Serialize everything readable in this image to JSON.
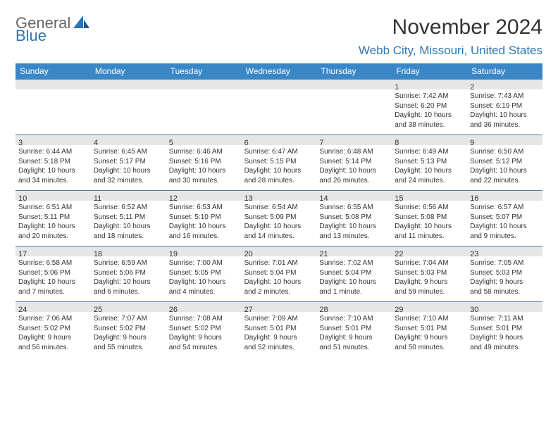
{
  "logo": {
    "general": "General",
    "blue": "Blue"
  },
  "title": "November 2024",
  "location": "Webb City, Missouri, United States",
  "colors": {
    "header_bg": "#3a87c8",
    "shade_bg": "#e6e6e6",
    "accent": "#2f74b5",
    "text": "#333333",
    "logo_gray": "#656565"
  },
  "layout": {
    "cols": 7,
    "rows": 5,
    "cell_min_h": 78
  },
  "day_headers": [
    "Sunday",
    "Monday",
    "Tuesday",
    "Wednesday",
    "Thursday",
    "Friday",
    "Saturday"
  ],
  "weeks": [
    [
      {
        "date": "",
        "lines": []
      },
      {
        "date": "",
        "lines": []
      },
      {
        "date": "",
        "lines": []
      },
      {
        "date": "",
        "lines": []
      },
      {
        "date": "",
        "lines": []
      },
      {
        "date": "1",
        "lines": [
          "Sunrise: 7:42 AM",
          "Sunset: 6:20 PM",
          "Daylight: 10 hours",
          "and 38 minutes."
        ]
      },
      {
        "date": "2",
        "lines": [
          "Sunrise: 7:43 AM",
          "Sunset: 6:19 PM",
          "Daylight: 10 hours",
          "and 36 minutes."
        ]
      }
    ],
    [
      {
        "date": "3",
        "lines": [
          "Sunrise: 6:44 AM",
          "Sunset: 5:18 PM",
          "Daylight: 10 hours",
          "and 34 minutes."
        ]
      },
      {
        "date": "4",
        "lines": [
          "Sunrise: 6:45 AM",
          "Sunset: 5:17 PM",
          "Daylight: 10 hours",
          "and 32 minutes."
        ]
      },
      {
        "date": "5",
        "lines": [
          "Sunrise: 6:46 AM",
          "Sunset: 5:16 PM",
          "Daylight: 10 hours",
          "and 30 minutes."
        ]
      },
      {
        "date": "6",
        "lines": [
          "Sunrise: 6:47 AM",
          "Sunset: 5:15 PM",
          "Daylight: 10 hours",
          "and 28 minutes."
        ]
      },
      {
        "date": "7",
        "lines": [
          "Sunrise: 6:48 AM",
          "Sunset: 5:14 PM",
          "Daylight: 10 hours",
          "and 26 minutes."
        ]
      },
      {
        "date": "8",
        "lines": [
          "Sunrise: 6:49 AM",
          "Sunset: 5:13 PM",
          "Daylight: 10 hours",
          "and 24 minutes."
        ]
      },
      {
        "date": "9",
        "lines": [
          "Sunrise: 6:50 AM",
          "Sunset: 5:12 PM",
          "Daylight: 10 hours",
          "and 22 minutes."
        ]
      }
    ],
    [
      {
        "date": "10",
        "lines": [
          "Sunrise: 6:51 AM",
          "Sunset: 5:11 PM",
          "Daylight: 10 hours",
          "and 20 minutes."
        ]
      },
      {
        "date": "11",
        "lines": [
          "Sunrise: 6:52 AM",
          "Sunset: 5:11 PM",
          "Daylight: 10 hours",
          "and 18 minutes."
        ]
      },
      {
        "date": "12",
        "lines": [
          "Sunrise: 6:53 AM",
          "Sunset: 5:10 PM",
          "Daylight: 10 hours",
          "and 16 minutes."
        ]
      },
      {
        "date": "13",
        "lines": [
          "Sunrise: 6:54 AM",
          "Sunset: 5:09 PM",
          "Daylight: 10 hours",
          "and 14 minutes."
        ]
      },
      {
        "date": "14",
        "lines": [
          "Sunrise: 6:55 AM",
          "Sunset: 5:08 PM",
          "Daylight: 10 hours",
          "and 13 minutes."
        ]
      },
      {
        "date": "15",
        "lines": [
          "Sunrise: 6:56 AM",
          "Sunset: 5:08 PM",
          "Daylight: 10 hours",
          "and 11 minutes."
        ]
      },
      {
        "date": "16",
        "lines": [
          "Sunrise: 6:57 AM",
          "Sunset: 5:07 PM",
          "Daylight: 10 hours",
          "and 9 minutes."
        ]
      }
    ],
    [
      {
        "date": "17",
        "lines": [
          "Sunrise: 6:58 AM",
          "Sunset: 5:06 PM",
          "Daylight: 10 hours",
          "and 7 minutes."
        ]
      },
      {
        "date": "18",
        "lines": [
          "Sunrise: 6:59 AM",
          "Sunset: 5:06 PM",
          "Daylight: 10 hours",
          "and 6 minutes."
        ]
      },
      {
        "date": "19",
        "lines": [
          "Sunrise: 7:00 AM",
          "Sunset: 5:05 PM",
          "Daylight: 10 hours",
          "and 4 minutes."
        ]
      },
      {
        "date": "20",
        "lines": [
          "Sunrise: 7:01 AM",
          "Sunset: 5:04 PM",
          "Daylight: 10 hours",
          "and 2 minutes."
        ]
      },
      {
        "date": "21",
        "lines": [
          "Sunrise: 7:02 AM",
          "Sunset: 5:04 PM",
          "Daylight: 10 hours",
          "and 1 minute."
        ]
      },
      {
        "date": "22",
        "lines": [
          "Sunrise: 7:04 AM",
          "Sunset: 5:03 PM",
          "Daylight: 9 hours",
          "and 59 minutes."
        ]
      },
      {
        "date": "23",
        "lines": [
          "Sunrise: 7:05 AM",
          "Sunset: 5:03 PM",
          "Daylight: 9 hours",
          "and 58 minutes."
        ]
      }
    ],
    [
      {
        "date": "24",
        "lines": [
          "Sunrise: 7:06 AM",
          "Sunset: 5:02 PM",
          "Daylight: 9 hours",
          "and 56 minutes."
        ]
      },
      {
        "date": "25",
        "lines": [
          "Sunrise: 7:07 AM",
          "Sunset: 5:02 PM",
          "Daylight: 9 hours",
          "and 55 minutes."
        ]
      },
      {
        "date": "26",
        "lines": [
          "Sunrise: 7:08 AM",
          "Sunset: 5:02 PM",
          "Daylight: 9 hours",
          "and 54 minutes."
        ]
      },
      {
        "date": "27",
        "lines": [
          "Sunrise: 7:09 AM",
          "Sunset: 5:01 PM",
          "Daylight: 9 hours",
          "and 52 minutes."
        ]
      },
      {
        "date": "28",
        "lines": [
          "Sunrise: 7:10 AM",
          "Sunset: 5:01 PM",
          "Daylight: 9 hours",
          "and 51 minutes."
        ]
      },
      {
        "date": "29",
        "lines": [
          "Sunrise: 7:10 AM",
          "Sunset: 5:01 PM",
          "Daylight: 9 hours",
          "and 50 minutes."
        ]
      },
      {
        "date": "30",
        "lines": [
          "Sunrise: 7:11 AM",
          "Sunset: 5:01 PM",
          "Daylight: 9 hours",
          "and 49 minutes."
        ]
      }
    ]
  ]
}
